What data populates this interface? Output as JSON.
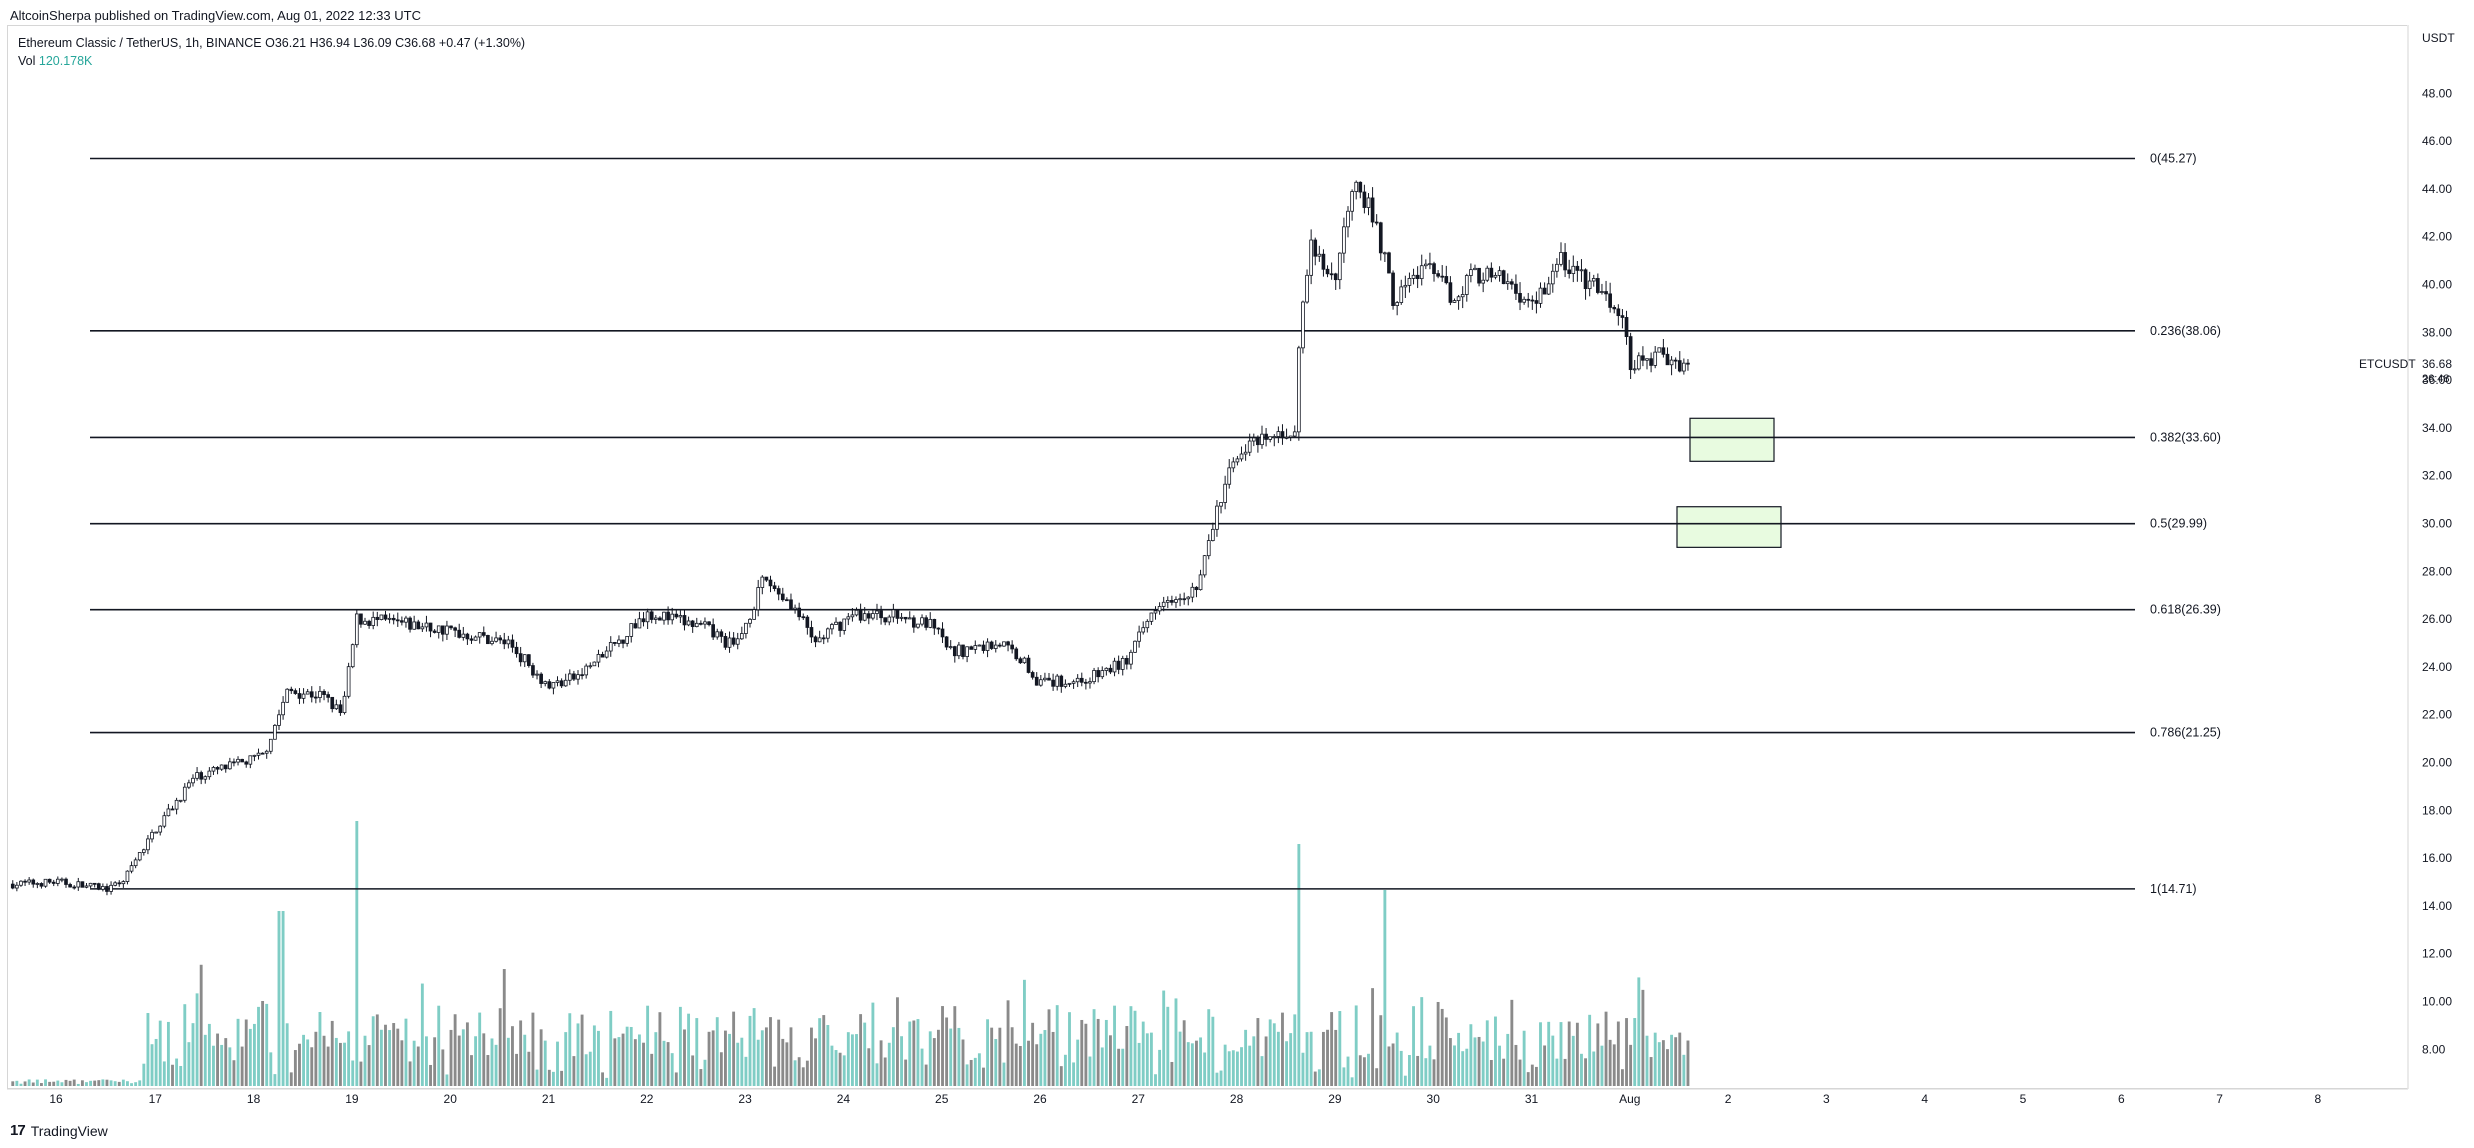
{
  "header": {
    "publisher": "AltcoinSherpa published on TradingView.com, Aug 01, 2022 12:33 UTC"
  },
  "legend": {
    "symbol_line": "Ethereum Classic / TetherUS, 1h, BINANCE",
    "open": "O36.21",
    "high": "H36.94",
    "low": "L36.09",
    "close": "C36.68",
    "change": "+0.47 (+1.30%)",
    "vol_label": "Vol",
    "vol_value": "120.178K"
  },
  "price_axis": {
    "unit": "USDT",
    "tick_labels": [
      "48.00",
      "46.00",
      "44.00",
      "42.00",
      "40.00",
      "38.00",
      "36.00",
      "34.00",
      "32.00",
      "30.00",
      "28.00",
      "26.00",
      "24.00",
      "22.00",
      "20.00",
      "18.00",
      "16.00",
      "14.00",
      "12.00",
      "10.00",
      "8.00"
    ],
    "last_symbol": "ETCUSDT",
    "last_price": "36.68",
    "countdown": "26:48"
  },
  "time_axis": {
    "tick_labels": [
      "16",
      "17",
      "18",
      "19",
      "20",
      "21",
      "22",
      "23",
      "24",
      "25",
      "26",
      "27",
      "28",
      "29",
      "30",
      "31",
      "Aug",
      "2",
      "3",
      "4",
      "5",
      "6",
      "7",
      "8"
    ]
  },
  "fib_levels": [
    {
      "label": "0(45.27)",
      "price": 45.27
    },
    {
      "label": "0.236(38.06)",
      "price": 38.06
    },
    {
      "label": "0.382(33.60)",
      "price": 33.6
    },
    {
      "label": "0.5(29.99)",
      "price": 29.99
    },
    {
      "label": "0.618(26.39)",
      "price": 26.39
    },
    {
      "label": "0.786(21.25)",
      "price": 21.25
    },
    {
      "label": "1(14.71)",
      "price": 14.71
    }
  ],
  "zones": [
    {
      "from_price": 34.4,
      "to_price": 32.6,
      "start": "Aug 1 ~12:00",
      "end": "Aug 2 ~09:00"
    },
    {
      "from_price": 30.7,
      "to_price": 29.0,
      "start": "Aug 1 ~08:00",
      "end": "Aug 2 ~10:00"
    }
  ],
  "footer": {
    "brand_logo": "17",
    "brand_name": "TradingView"
  },
  "chart_data": {
    "type": "candlestick",
    "interval": "1h",
    "x_range": [
      "Jul 16 2022",
      "Aug 8 2022"
    ],
    "ylim": [
      6.5,
      49
    ],
    "grid": false,
    "daily_path": [
      {
        "date": "Jul 16",
        "close": 14.9
      },
      {
        "date": "Jul 17",
        "close": 17.0
      },
      {
        "date": "Jul 18",
        "close": 22.0
      },
      {
        "date": "Jul 19",
        "close": 26.0
      },
      {
        "date": "Jul 20",
        "close": 25.0
      },
      {
        "date": "Jul 21",
        "close": 23.0
      },
      {
        "date": "Jul 22",
        "close": 26.0
      },
      {
        "date": "Jul 23",
        "close": 26.5
      },
      {
        "date": "Jul 24",
        "close": 26.0
      },
      {
        "date": "Jul 25",
        "close": 24.8
      },
      {
        "date": "Jul 26",
        "close": 23.5
      },
      {
        "date": "Jul 27",
        "close": 27.0
      },
      {
        "date": "Jul 28",
        "close": 34.0
      },
      {
        "date": "Jul 29",
        "close": 42.0
      },
      {
        "date": "Jul 30",
        "close": 40.0
      },
      {
        "date": "Jul 31",
        "close": 40.0
      },
      {
        "date": "Aug 1",
        "close": 36.68
      }
    ],
    "volume_series": {
      "name": "Vol",
      "last": "120.178K"
    }
  }
}
